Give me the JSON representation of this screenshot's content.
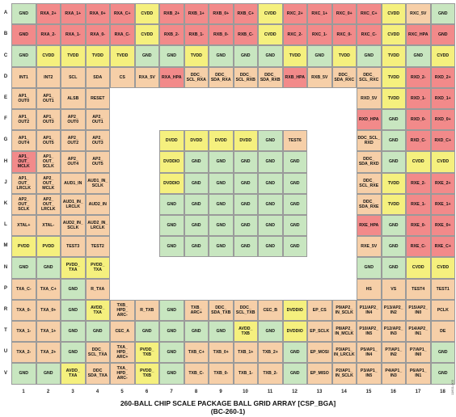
{
  "caption": {
    "title": "260-BALL CHIP SCALE PACKAGE BALL GRID ARRAY [CSP_BGA]",
    "subtitle": "(BC-260-1)"
  },
  "side_code": "11601-003",
  "colors": {
    "ground": "#c8e6c0",
    "power": "#f5f07e",
    "signal": "#f6cfa8",
    "red_signal": "#f28a8a",
    "empty": "#ffffff"
  },
  "rows": [
    "A",
    "B",
    "C",
    "D",
    "E",
    "F",
    "G",
    "H",
    "J",
    "K",
    "L",
    "M",
    "N",
    "P",
    "R",
    "T",
    "U",
    "V"
  ],
  "cols": [
    "1",
    "2",
    "3",
    "4",
    "5",
    "6",
    "7",
    "8",
    "9",
    "10",
    "11",
    "12",
    "13",
    "14",
    "15",
    "16",
    "17",
    "18"
  ],
  "cells": [
    [
      "GND|g",
      "RXA_2+|r",
      "RXA_1+|r",
      "RXA_0+|r",
      "RXA_C+|r",
      "CVDD|y",
      "RXB_2+|r",
      "RXB_1+|r",
      "RXB_0+|r",
      "RXB_C+|r",
      "CVDD|y",
      "RXC_2+|r",
      "RXC_1+|r",
      "RXC_0+|r",
      "RXC_C+|r",
      "CVDD|y",
      "RXC_5V|o",
      "GND|g"
    ],
    [
      "GND|r",
      "RXA_2-|r",
      "RXA_1-|r",
      "RXA_0-|r",
      "RXA_C-|r",
      "CVDD|y",
      "RXB_2-|r",
      "RXB_1-|r",
      "RXB_0-|r",
      "RXB_C-|r",
      "CVDD|y",
      "RXC_2-|r",
      "RXC_1-|r",
      "RXC_0-|r",
      "RXC_C-|r",
      "CVDD|y",
      "RXC_HPA|r",
      "GND|r"
    ],
    [
      "GND|g",
      "CVDD|y",
      "TVDD|y",
      "TVDD|y",
      "TVDD|y",
      "GND|g",
      "GND|g",
      "TVDD|y",
      "GND|g",
      "GND|g",
      "GND|g",
      "TVDD|y",
      "GND|g",
      "TVDD|y",
      "GND|g",
      "TVDD|y",
      "GND|g",
      "CVDD|y"
    ],
    [
      "INT1|o",
      "INT2|o",
      "SCL|o",
      "SDA|o",
      "CS|o",
      "RXA_5V|o",
      "RXA_HPA|r",
      "DDC_\nSCL_RXA|o",
      "DDC_\nSDA_RXA|o",
      "DDC_\nSCL_RXB|o",
      "DDC_\nSDA_RXB|o",
      "RXB_HPA|r",
      "RXB_5V|o",
      "DDC_\nSDA_RXC|o",
      "DDC_\nSCL_RXC|o",
      "TVDD|y",
      "RXD_2-|r",
      "RXD_2+|r"
    ],
    [
      "AP1_\nOUT0|o",
      "AP1_\nOUT1|o",
      "ALSB|o",
      "RESET|o",
      "|w",
      "|w",
      "|w",
      "|w",
      "|w",
      "|w",
      "|w",
      "|w",
      "|w",
      "|w",
      "RXD_5V|o",
      "TVDD|y",
      "RXD_1-|r",
      "RXD_1+|r"
    ],
    [
      "AP1_\nOUT2|o",
      "AP1_\nOUT3|o",
      "AP2_\nOUT0|o",
      "AP2_\nOUT1|o",
      "|w",
      "|w",
      "|w",
      "|w",
      "|w",
      "|w",
      "|w",
      "|w",
      "|w",
      "|w",
      "RXD_HPA|r",
      "GND|g",
      "RXD_0-|r",
      "RXD_0+|r"
    ],
    [
      "AP1_\nOUT4|o",
      "AP1_\nOUT5|o",
      "AP2_\nOUT2|o",
      "AP2_\nOUT3|o",
      "|w",
      "|w",
      "DVDD|y",
      "DVDD|y",
      "DVDD|y",
      "DVDD|y",
      "GND|g",
      "TEST6|o",
      "|w",
      "|w",
      "DDC_SCL_\nRXD|o",
      "GND|g",
      "RXD_C-|r",
      "RXD_C+|r"
    ],
    [
      "AP1_\nOUT_\nMCLK|r",
      "AP1_\nOUT_\nSCLK|o",
      "AP2_\nOUT4|o",
      "AP2_\nOUT5|o",
      "|w",
      "|w",
      "DVDDIO|y",
      "GND|g",
      "GND|g",
      "GND|g",
      "GND|g",
      "GND|g",
      "|w",
      "|w",
      "DDC_\nSDA_RXD|o",
      "GND|g",
      "CVDD|y",
      "CVDD|y"
    ],
    [
      "AP1_\nOUT_\nLRCLK|o",
      "AP2_\nOUT_\nMCLK|o",
      "AUD1_IN|o",
      "AUD1_IN_\nSCLK|o",
      "|w",
      "|w",
      "DVDDIO|y",
      "GND|g",
      "GND|g",
      "GND|g",
      "GND|g",
      "GND|g",
      "|w",
      "|w",
      "DDC_\nSCL_RXE|o",
      "TVDD|y",
      "RXE_2-|r",
      "RXE_2+|r"
    ],
    [
      "AP2_\nOUT_\nSCLK|o",
      "AP2_\nOUT_\nLRCLK|o",
      "AUD1_IN_\nLRCLK|o",
      "AUD2_IN|o",
      "|w",
      "|w",
      "GND|g",
      "GND|g",
      "GND|g",
      "GND|g",
      "GND|g",
      "GND|g",
      "|w",
      "|w",
      "DDC_\nSDA_RXE|o",
      "TVDD|y",
      "RXE_1-|r",
      "RXE_1+|r"
    ],
    [
      "XTAL+|o",
      "XTAL-|o",
      "AUD2_IN_\nSCLK|o",
      "AUD2_IN_\nLRCLK|o",
      "|w",
      "|w",
      "GND|g",
      "GND|g",
      "GND|g",
      "GND|g",
      "GND|g",
      "GND|g",
      "|w",
      "|w",
      "RXE_HPA|r",
      "GND|g",
      "RXE_0-|r",
      "RXE_0+|r"
    ],
    [
      "PVDD|y",
      "PVDD|y",
      "TEST3|o",
      "TEST2|o",
      "|w",
      "|w",
      "GND|g",
      "GND|g",
      "GND|g",
      "GND|g",
      "GND|g",
      "GND|g",
      "|w",
      "|w",
      "RXE_5V|o",
      "GND|g",
      "RXE_C-|r",
      "RXE_C+|r"
    ],
    [
      "GND|g",
      "GND|g",
      "PVDD_\nTXA|y",
      "PVDD_\nTXA|y",
      "|w",
      "|w",
      "|w",
      "|w",
      "|w",
      "|w",
      "|w",
      "|w",
      "|w",
      "|w",
      "GND|g",
      "GND|g",
      "CVDD|y",
      "CVDD|y"
    ],
    [
      "TXA_C-|o",
      "TXA_C+|o",
      "GND|g",
      "R_TXA|o",
      "|w",
      "|w",
      "|w",
      "|w",
      "|w",
      "|w",
      "|w",
      "|w",
      "|w",
      "|w",
      "HS|o",
      "VS|o",
      "TEST4|o",
      "TEST1|o"
    ],
    [
      "TXA_0-|o",
      "TXA_0+|o",
      "GND|g",
      "AVDD_\nTXA|y",
      "TXB_\nHPD_\nARC-|o",
      "R_TXB|o",
      "GND|g",
      "TXB_\nARC+|o",
      "DDC_\nSDA_TXB|o",
      "DDC_\nSCL_TXB|o",
      "CEC_B|o",
      "DVDDIO|y",
      "EP_CS|o",
      "P9/AP2_\nIN_SCLK|o",
      "P11/AP2_\nIN4|o",
      "P13/AP2_\nIN2|o",
      "P15/AP2_\nIN0|o",
      "PCLK|o"
    ],
    [
      "TXA_1-|o",
      "TXA_1+|o",
      "GND|g",
      "GND|g",
      "CEC_A|o",
      "GND|g",
      "GND|g",
      "GND|g",
      "GND|g",
      "AVDD_\nTXB|y",
      "GND|g",
      "DVDDIO|y",
      "EP_SCLK|o",
      "P8/AP2_\nIN_MCLK|o",
      "P10/AP2_\nIN5|o",
      "P12/AP2_\nIN3|o",
      "P14/AP2_\nIN1|o",
      "DE|o"
    ],
    [
      "TXA_2-|o",
      "TXA_2+|o",
      "GND|g",
      "DDC_\nSCL_TXA|o",
      "TXA_\nHPD_\nARC+|o",
      "PVDD_\nTXB|y",
      "GND|g",
      "TXB_C+|o",
      "TXB_0+|o",
      "TXB_1+|o",
      "TXB_2+|o",
      "GND|g",
      "EP_MOSI|o",
      "P3/AP1_\nIN_LRCLK|o",
      "P5/AP1_\nIN4|o",
      "P7/AP1_\nIN2|o",
      "P7/AP1_\nIN0|o",
      "GND|g"
    ],
    [
      "GND|g",
      "GND|g",
      "AVDD_\nTXA|y",
      "DDC\nSDA_TXA|o",
      "TXA_\nHPD_\nARC-|o",
      "PVDD_\nTXB|y",
      "GND|g",
      "TXB_C-|o",
      "TXB_0-|o",
      "TXB_1-|o",
      "TXB_2-|o",
      "GND|g",
      "EP_MISO|o",
      "P2/AP1_\nIN_SCLK|o",
      "P3/AP1_\nIN5|o",
      "P4/AP1_\nIN3|o",
      "P6/AP1_\nIN1|o",
      "GND|g"
    ]
  ]
}
